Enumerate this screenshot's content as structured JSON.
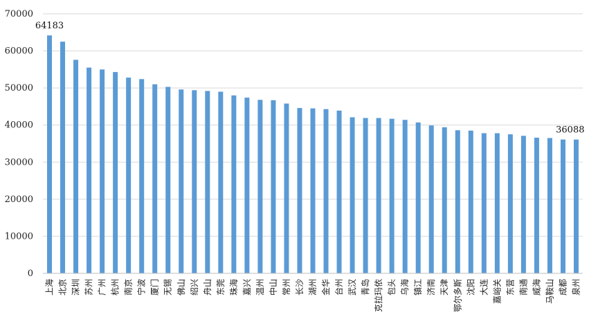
{
  "chart_data": {
    "type": "bar",
    "title": "",
    "xlabel": "",
    "ylabel": "",
    "ylim": [
      0,
      70000
    ],
    "yticks": [
      0,
      10000,
      20000,
      30000,
      40000,
      50000,
      60000,
      70000
    ],
    "grid": true,
    "legend": "none",
    "bar_color": "#5b9bd5",
    "grid_color": "#d9d9d9",
    "categories": [
      "上海",
      "北京",
      "深圳",
      "苏州",
      "广州",
      "杭州",
      "南京",
      "宁波",
      "厦门",
      "无锡",
      "佛山",
      "绍兴",
      "舟山",
      "东莞",
      "珠海",
      "嘉兴",
      "温州",
      "中山",
      "常州",
      "长沙",
      "湖州",
      "金华",
      "台州",
      "武汉",
      "青岛",
      "克拉玛依",
      "包头",
      "乌海",
      "镇江",
      "济南",
      "天津",
      "鄂尔多斯",
      "沈阳",
      "大连",
      "嘉峪关",
      "东营",
      "南通",
      "威海",
      "马鞍山",
      "成都",
      "泉州"
    ],
    "values": [
      64183,
      62500,
      57600,
      55500,
      55000,
      54300,
      52800,
      52400,
      51000,
      50300,
      49600,
      49400,
      49200,
      49000,
      48000,
      47400,
      46800,
      46700,
      45800,
      44600,
      44500,
      44300,
      43900,
      42100,
      41900,
      41900,
      41700,
      41400,
      40700,
      39900,
      39400,
      38600,
      38500,
      37800,
      37800,
      37500,
      37100,
      36600,
      36500,
      36100,
      36088
    ],
    "data_labels": [
      {
        "index": 0,
        "text": "64183"
      },
      {
        "index": 40,
        "text": "36088"
      }
    ]
  }
}
